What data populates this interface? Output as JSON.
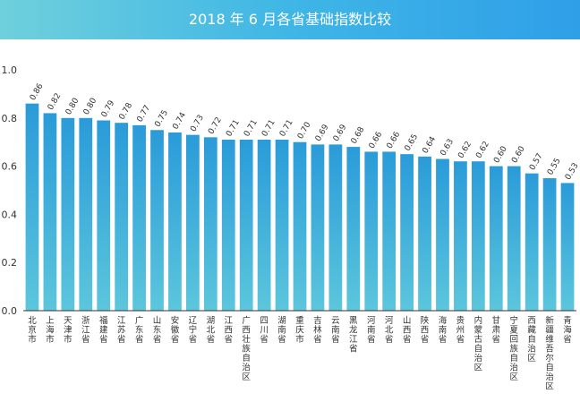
{
  "colors": {
    "banner_start": "#6fd0dc",
    "banner_end": "#2f9fe8",
    "bar_top": "#2a9bd9",
    "bar_bottom": "#5cc6dc",
    "axis": "#333333"
  },
  "chart_data": {
    "type": "bar",
    "title": "2018 年 6 月各省基础指数比较",
    "xlabel": "",
    "ylabel": "",
    "ylim": [
      0,
      1.0
    ],
    "yticks": [
      "0.0",
      "0.2",
      "0.4",
      "0.6",
      "0.8",
      "1.0"
    ],
    "grid": false,
    "categories": [
      "北京市",
      "上海市",
      "天津市",
      "浙江省",
      "福建省",
      "江苏省",
      "广东省",
      "山东省",
      "安徽省",
      "辽宁省",
      "湖北省",
      "江西省",
      "广西壮族自治区",
      "四川省",
      "湖南省",
      "重庆市",
      "吉林省",
      "云南省",
      "黑龙江省",
      "河南省",
      "河北省",
      "山西省",
      "陕西省",
      "海南省",
      "贵州省",
      "内蒙古自治区",
      "甘肃省",
      "宁夏回族自治区",
      "西藏自治区",
      "新疆维吾尔自治区",
      "青海省"
    ],
    "values": [
      0.86,
      0.82,
      0.8,
      0.8,
      0.79,
      0.78,
      0.77,
      0.75,
      0.74,
      0.73,
      0.72,
      0.71,
      0.71,
      0.71,
      0.71,
      0.7,
      0.69,
      0.69,
      0.68,
      0.66,
      0.66,
      0.65,
      0.64,
      0.63,
      0.62,
      0.62,
      0.6,
      0.6,
      0.57,
      0.55,
      0.53
    ],
    "value_labels": [
      "0.86",
      "0.82",
      "0.80",
      "0.80",
      "0.79",
      "0.78",
      "0.77",
      "0.75",
      "0.74",
      "0.73",
      "0.72",
      "0.71",
      "0.71",
      "0.71",
      "0.71",
      "0.70",
      "0.69",
      "0.69",
      "0.68",
      "0.66",
      "0.66",
      "0.65",
      "0.64",
      "0.63",
      "0.62",
      "0.62",
      "0.60",
      "0.60",
      "0.57",
      "0.55",
      "0.53"
    ]
  }
}
